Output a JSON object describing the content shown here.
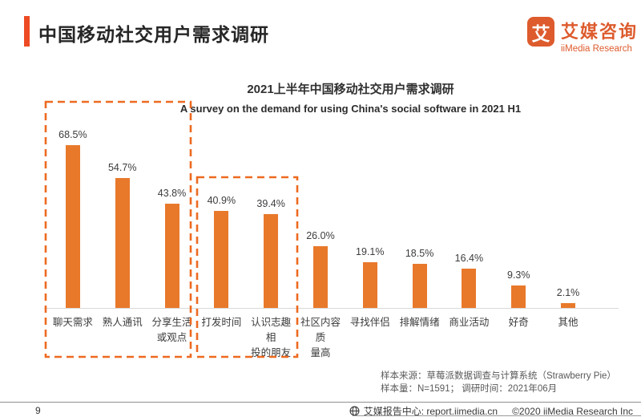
{
  "header": {
    "title": "中国移动社交用户需求调研",
    "logo": {
      "icon_char": "艾",
      "brand_cn": "艾媒咨询",
      "brand_en": "iiMedia Research"
    }
  },
  "chart_data": {
    "type": "bar",
    "title": "2021上半年中国移动社交用户需求调研",
    "subtitle": "A survey on the demand for using China's social software in 2021 H1",
    "categories": [
      "聊天需求",
      "熟人通讯",
      "分享生活\n或观点",
      "打发时间",
      "认识志趣相\n投的朋友",
      "社区内容质\n量高",
      "寻找伴侣",
      "排解情绪",
      "商业活动",
      "好奇",
      "其他"
    ],
    "values": [
      68.5,
      54.7,
      43.8,
      40.9,
      39.4,
      26.0,
      19.1,
      18.5,
      16.4,
      9.3,
      2.1
    ],
    "value_labels": [
      "68.5%",
      "54.7%",
      "43.8%",
      "40.9%",
      "39.4%",
      "26.0%",
      "19.1%",
      "18.5%",
      "16.4%",
      "9.3%",
      "2.1%"
    ],
    "unit": "%",
    "ylim": [
      0,
      70
    ],
    "grid": false,
    "legend": null,
    "bar_color": "#E8792B",
    "highlight_groups": [
      [
        0,
        2
      ],
      [
        3,
        4
      ]
    ],
    "highlight_color": "#ED6A21"
  },
  "source": {
    "line1": "样本来源：草莓派数据调查与计算系统（Strawberry Pie）",
    "line2": "样本量：N=1591；  调研时间：2021年06月"
  },
  "footer": {
    "page_number": "9",
    "report_center": "艾媒报告中心: report.iimedia.cn",
    "copyright": "©2020  iiMedia Research Inc"
  },
  "colors": {
    "accent_red": "#ED4B24",
    "bar_orange": "#E8792B",
    "dashed_orange": "#ED6A21",
    "brand_orange": "#DD5B2D",
    "axis_gray": "#D9D9D9"
  }
}
